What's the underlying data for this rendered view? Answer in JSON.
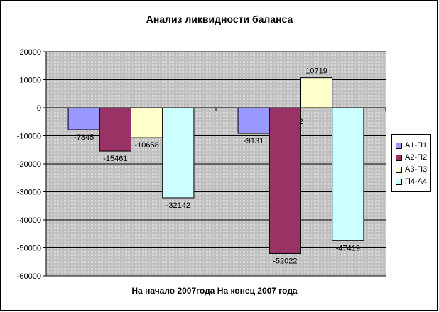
{
  "chart_data": {
    "type": "bar",
    "title": "Анализ ликвидности баланса",
    "xlabel": "На начало 2007года На конец 2007 года",
    "ylabel": "",
    "categories": [
      "1",
      "2"
    ],
    "series": [
      {
        "name": "А1-П1",
        "values": [
          -7845,
          -9131
        ],
        "color": "#9999ff"
      },
      {
        "name": "А2-П2",
        "values": [
          -15461,
          -52022
        ],
        "color": "#993366"
      },
      {
        "name": "А3-П3",
        "values": [
          -10658,
          10719
        ],
        "color": "#ffffcc"
      },
      {
        "name": "П4-А4",
        "values": [
          -32142,
          -47419
        ],
        "color": "#ccffff"
      }
    ],
    "ylim": [
      -60000,
      20000
    ],
    "yticks": [
      20000,
      10000,
      0,
      -10000,
      -20000,
      -30000,
      -40000,
      -50000,
      -60000
    ],
    "grid": true,
    "plot_background": "#c0c0c0",
    "legend_position": "right"
  }
}
